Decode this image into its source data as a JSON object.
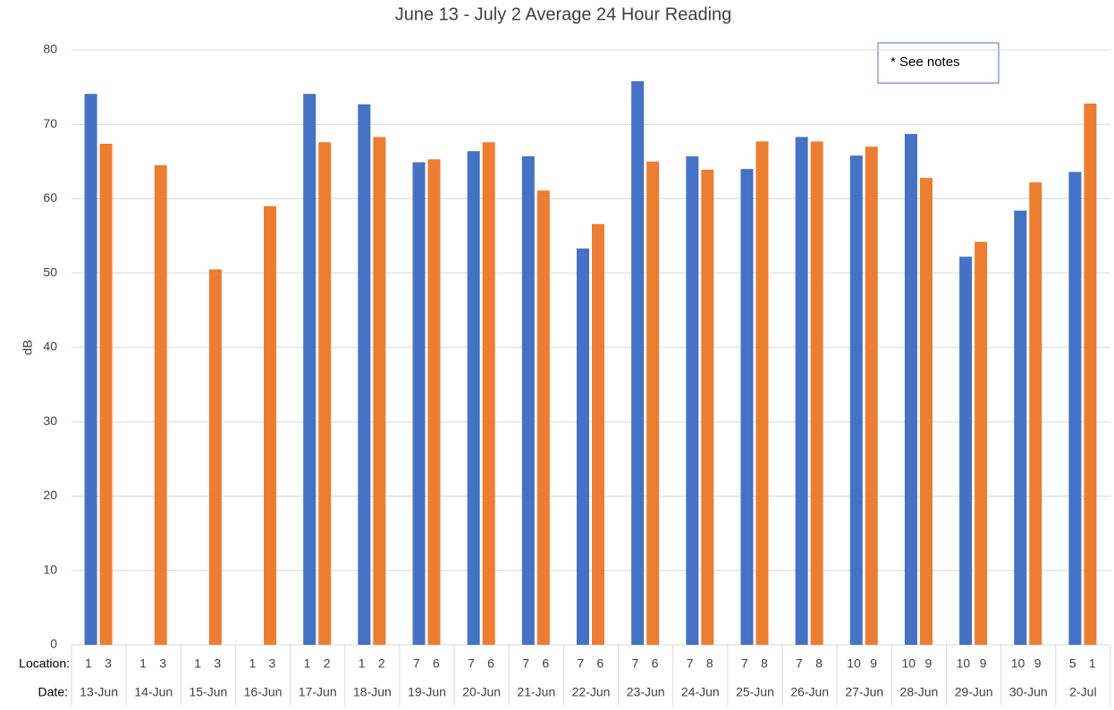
{
  "chart_data": {
    "type": "bar",
    "title": "June 13 - July 2 Average 24 Hour Reading",
    "y_label": "dB",
    "annotation": "* See notes",
    "location_label": "Location:",
    "date_label": "Date:",
    "categories": [
      "13-Jun",
      "14-Jun",
      "15-Jun",
      "16-Jun",
      "17-Jun",
      "18-Jun",
      "19-Jun",
      "20-Jun",
      "21-Jun",
      "22-Jun",
      "23-Jun",
      "24-Jun",
      "25-Jun",
      "26-Jun",
      "27-Jun",
      "28-Jun",
      "29-Jun",
      "30-Jun",
      "2-Jul"
    ],
    "series": [
      {
        "color": "#4472c4",
        "locations": [
          "1",
          "1",
          "1",
          "1",
          "1",
          "1",
          "7",
          "7",
          "7",
          "7",
          "7",
          "7",
          "7",
          "7",
          "10",
          "10",
          "10",
          "10",
          "5"
        ],
        "values": [
          74.1,
          null,
          null,
          null,
          74.1,
          72.7,
          64.9,
          66.4,
          65.7,
          53.3,
          75.8,
          65.7,
          64,
          68.3,
          65.8,
          68.7,
          52.2,
          58.4,
          63.6
        ]
      },
      {
        "color": "#ed7d31",
        "locations": [
          "3",
          "3",
          "3",
          "3",
          "2",
          "2",
          "6",
          "6",
          "6",
          "6",
          "6",
          "8",
          "8",
          "8",
          "9",
          "9",
          "9",
          "9",
          "1"
        ],
        "values": [
          67.4,
          64.5,
          50.5,
          59,
          67.6,
          68.3,
          65.3,
          67.6,
          61.1,
          56.6,
          65,
          63.9,
          67.7,
          67.7,
          67,
          62.8,
          54.2,
          62.2,
          72.8
        ]
      }
    ],
    "ylim": [
      0,
      80
    ],
    "yticks": [
      0,
      10,
      20,
      30,
      40,
      50,
      60,
      70,
      80
    ],
    "grid": true
  }
}
